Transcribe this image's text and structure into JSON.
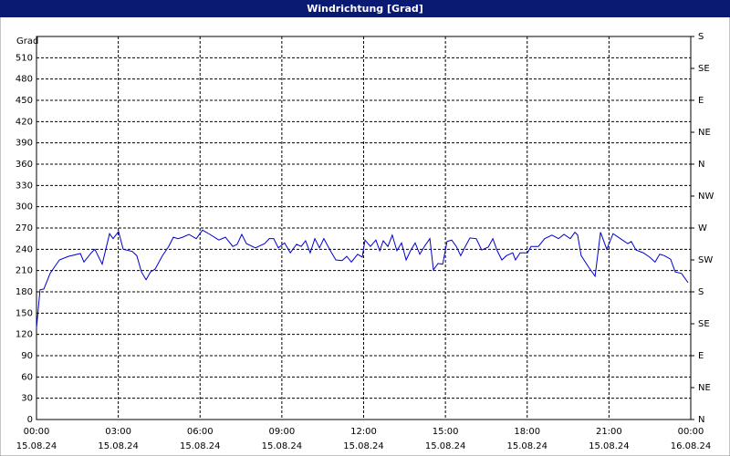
{
  "chart_data": {
    "type": "line",
    "title": "Windrichtung [Grad]",
    "ylabel": "Grad",
    "x": [
      0,
      0.13,
      0.27,
      0.5,
      0.84,
      1.17,
      1.61,
      1.74,
      2.01,
      2.14,
      2.41,
      2.68,
      2.81,
      3.01,
      3.18,
      3.51,
      3.68,
      3.85,
      4.02,
      4.18,
      4.35,
      4.62,
      4.85,
      5.02,
      5.19,
      5.36,
      5.59,
      5.86,
      6.09,
      6.36,
      6.69,
      6.93,
      7.2,
      7.36,
      7.53,
      7.7,
      8.03,
      8.37,
      8.54,
      8.7,
      8.87,
      9.1,
      9.31,
      9.54,
      9.71,
      9.87,
      10.04,
      10.21,
      10.38,
      10.54,
      10.78,
      10.98,
      11.21,
      11.38,
      11.55,
      11.78,
      11.95,
      12.05,
      12.25,
      12.45,
      12.59,
      12.72,
      12.89,
      13.05,
      13.22,
      13.39,
      13.56,
      13.72,
      13.89,
      14.06,
      14.23,
      14.43,
      14.56,
      14.73,
      14.9,
      15.06,
      15.23,
      15.4,
      15.56,
      15.73,
      15.9,
      16.13,
      16.33,
      16.57,
      16.74,
      16.9,
      17.07,
      17.24,
      17.47,
      17.57,
      17.74,
      18.01,
      18.14,
      18.41,
      18.64,
      18.91,
      19.15,
      19.35,
      19.58,
      19.75,
      19.85,
      19.98,
      20.25,
      20.49,
      20.69,
      20.92,
      21.15,
      21.42,
      21.69,
      21.82,
      21.99,
      22.26,
      22.49,
      22.69,
      22.86,
      23.03,
      23.26,
      23.43,
      23.66,
      23.9
    ],
    "series": [
      {
        "name": "Windrichtung",
        "color": "#0000cc",
        "values": [
          129,
          183,
          184,
          206,
          225,
          230,
          234,
          222,
          235,
          240,
          219,
          262,
          255,
          265,
          240,
          237,
          231,
          208,
          197,
          208,
          212,
          231,
          244,
          257,
          255,
          257,
          261,
          255,
          267,
          261,
          253,
          257,
          244,
          247,
          261,
          248,
          242,
          248,
          255,
          255,
          242,
          249,
          235,
          247,
          244,
          252,
          235,
          255,
          242,
          255,
          238,
          225,
          224,
          230,
          222,
          233,
          229,
          253,
          244,
          253,
          238,
          252,
          244,
          260,
          238,
          249,
          225,
          238,
          249,
          233,
          244,
          255,
          211,
          220,
          219,
          251,
          253,
          244,
          231,
          244,
          256,
          255,
          239,
          243,
          255,
          238,
          225,
          231,
          235,
          225,
          235,
          235,
          244,
          244,
          255,
          260,
          255,
          261,
          255,
          264,
          260,
          231,
          215,
          202,
          264,
          240,
          262,
          255,
          248,
          251,
          239,
          235,
          229,
          222,
          233,
          231,
          226,
          208,
          206,
          193
        ]
      }
    ],
    "xlim": [
      0,
      24
    ],
    "xticks": [
      {
        "value": 0,
        "label": "00:00",
        "date": "15.08.24"
      },
      {
        "value": 3,
        "label": "03:00",
        "date": "15.08.24"
      },
      {
        "value": 6,
        "label": "06:00",
        "date": "15.08.24"
      },
      {
        "value": 9,
        "label": "09:00",
        "date": "15.08.24"
      },
      {
        "value": 12,
        "label": "12:00",
        "date": "15.08.24"
      },
      {
        "value": 15,
        "label": "15:00",
        "date": "15.08.24"
      },
      {
        "value": 18,
        "label": "18:00",
        "date": "15.08.24"
      },
      {
        "value": 21,
        "label": "21:00",
        "date": "15.08.24"
      },
      {
        "value": 24,
        "label": "00:00",
        "date": "16.08.24"
      }
    ],
    "ylim": [
      0,
      540
    ],
    "yticks": [
      0,
      30,
      60,
      90,
      120,
      150,
      180,
      210,
      240,
      270,
      300,
      330,
      360,
      390,
      420,
      450,
      480,
      510
    ],
    "y2lim": [
      0,
      540
    ],
    "y2ticks": [
      {
        "value": 0,
        "label": "N"
      },
      {
        "value": 45,
        "label": "NE"
      },
      {
        "value": 90,
        "label": "E"
      },
      {
        "value": 135,
        "label": "SE"
      },
      {
        "value": 180,
        "label": "S"
      },
      {
        "value": 225,
        "label": "SW"
      },
      {
        "value": 270,
        "label": "W"
      },
      {
        "value": 315,
        "label": "NW"
      },
      {
        "value": 360,
        "label": "N"
      },
      {
        "value": 405,
        "label": "NE"
      },
      {
        "value": 450,
        "label": "E"
      },
      {
        "value": 495,
        "label": "SE"
      },
      {
        "value": 540,
        "label": "S"
      }
    ],
    "grid": true
  }
}
